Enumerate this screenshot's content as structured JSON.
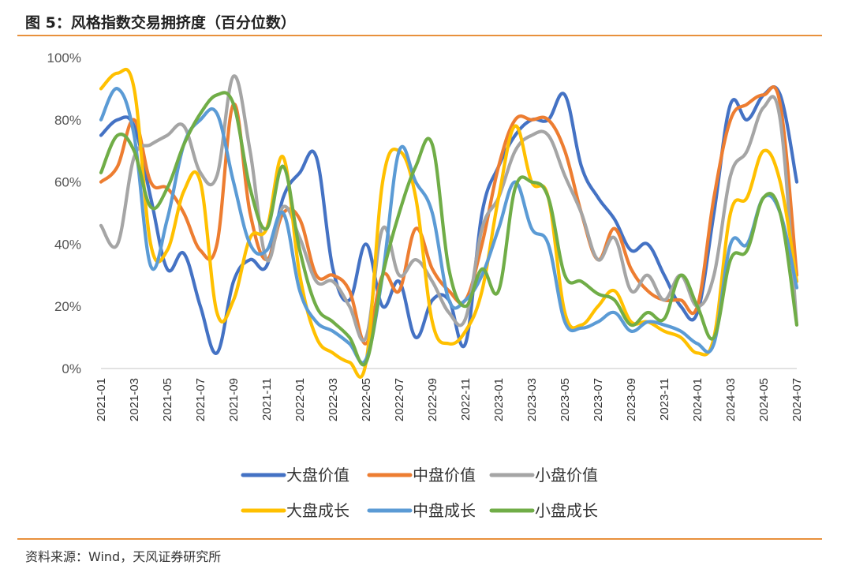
{
  "header": {
    "title": "图 5：风格指数交易拥挤度（百分位数）"
  },
  "footer": {
    "source": "资料来源：Wind，天风证券研究所"
  },
  "colors": {
    "accent": "#e8903c"
  },
  "chart_data": {
    "type": "line",
    "title": "图 5：风格指数交易拥挤度（百分位数）",
    "ylim": [
      0,
      100
    ],
    "y_ticks": [
      "0%",
      "20%",
      "40%",
      "60%",
      "80%",
      "100%"
    ],
    "x_ticks": [
      "2021-01",
      "2021-03",
      "2021-05",
      "2021-07",
      "2021-09",
      "2021-11",
      "2022-01",
      "2022-03",
      "2022-05",
      "2022-07",
      "2022-09",
      "2022-11",
      "2023-01",
      "2023-03",
      "2023-05",
      "2023-07",
      "2023-09",
      "2023-11",
      "2024-01",
      "2024-03",
      "2024-05",
      "2024-07"
    ],
    "grid": false,
    "legend_position": "bottom",
    "x": [
      "2021-01",
      "2021-02",
      "2021-03",
      "2021-04",
      "2021-05",
      "2021-06",
      "2021-07",
      "2021-08",
      "2021-09",
      "2021-10",
      "2021-11",
      "2021-12",
      "2022-01",
      "2022-02",
      "2022-03",
      "2022-04",
      "2022-05",
      "2022-06",
      "2022-07",
      "2022-08",
      "2022-09",
      "2022-10",
      "2022-11",
      "2022-12",
      "2023-01",
      "2023-02",
      "2023-03",
      "2023-04",
      "2023-05",
      "2023-06",
      "2023-07",
      "2023-08",
      "2023-09",
      "2023-10",
      "2023-11",
      "2023-12",
      "2024-01",
      "2024-02",
      "2024-03",
      "2024-04",
      "2024-05",
      "2024-06",
      "2024-07"
    ],
    "series": [
      {
        "name": "大盘价值",
        "color": "#4472c4",
        "values": [
          75,
          80,
          78,
          55,
          32,
          37,
          20,
          5,
          28,
          35,
          33,
          55,
          63,
          68,
          32,
          22,
          40,
          20,
          28,
          10,
          22,
          22,
          8,
          50,
          65,
          75,
          80,
          80,
          88,
          65,
          55,
          48,
          38,
          40,
          30,
          20,
          18,
          50,
          85,
          80,
          88,
          88,
          60
        ]
      },
      {
        "name": "中盘价值",
        "color": "#ed7d31",
        "values": [
          60,
          65,
          80,
          60,
          58,
          50,
          38,
          40,
          85,
          50,
          35,
          50,
          48,
          30,
          30,
          25,
          8,
          30,
          25,
          45,
          32,
          25,
          22,
          40,
          65,
          80,
          80,
          80,
          70,
          50,
          35,
          45,
          32,
          25,
          22,
          22,
          20,
          55,
          80,
          85,
          88,
          85,
          30
        ]
      },
      {
        "name": "小盘价值",
        "color": "#a5a5a5",
        "values": [
          46,
          40,
          68,
          72,
          75,
          78,
          63,
          62,
          94,
          70,
          35,
          52,
          42,
          28,
          28,
          20,
          10,
          45,
          30,
          35,
          28,
          18,
          16,
          45,
          55,
          70,
          75,
          75,
          62,
          50,
          35,
          42,
          25,
          30,
          22,
          30,
          20,
          30,
          62,
          70,
          84,
          80,
          14
        ]
      },
      {
        "name": "大盘成长",
        "color": "#ffc000",
        "values": [
          90,
          95,
          90,
          40,
          38,
          57,
          60,
          18,
          22,
          42,
          45,
          68,
          30,
          10,
          5,
          2,
          2,
          60,
          70,
          55,
          15,
          8,
          12,
          25,
          55,
          78,
          60,
          55,
          18,
          14,
          20,
          25,
          15,
          15,
          12,
          10,
          5,
          10,
          50,
          55,
          70,
          60,
          28
        ]
      },
      {
        "name": "中盘成长",
        "color": "#5b9bd5",
        "values": [
          80,
          90,
          75,
          33,
          48,
          72,
          80,
          82,
          60,
          40,
          38,
          50,
          25,
          15,
          12,
          8,
          3,
          30,
          70,
          60,
          50,
          22,
          22,
          30,
          45,
          60,
          45,
          40,
          15,
          13,
          15,
          18,
          12,
          15,
          14,
          12,
          8,
          8,
          40,
          40,
          55,
          50,
          26
        ]
      },
      {
        "name": "小盘成长",
        "color": "#70ad47",
        "values": [
          63,
          75,
          70,
          52,
          58,
          72,
          82,
          88,
          85,
          58,
          45,
          65,
          38,
          20,
          15,
          10,
          2,
          30,
          50,
          65,
          72,
          32,
          20,
          32,
          25,
          58,
          60,
          55,
          30,
          28,
          24,
          22,
          14,
          18,
          16,
          30,
          20,
          10,
          35,
          38,
          55,
          50,
          14
        ]
      }
    ]
  }
}
